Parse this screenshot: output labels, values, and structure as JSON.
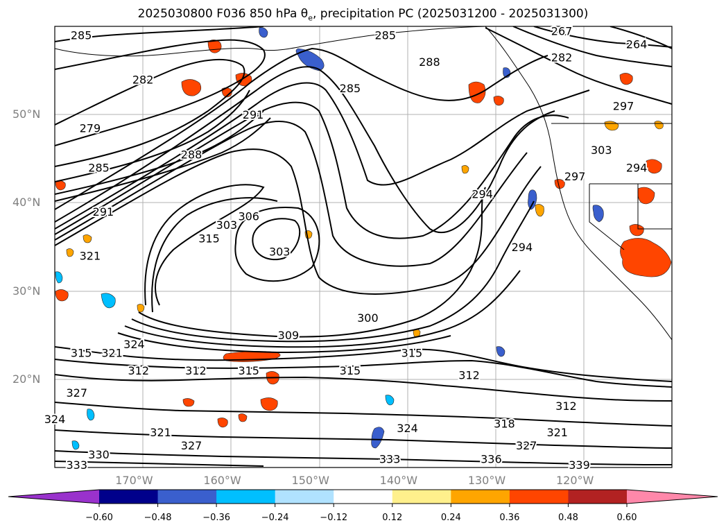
{
  "title": {
    "prefix": "2025030800 F036 850 hPa ",
    "theta": "θ",
    "theta_sub": "e",
    "suffix": ", precipitation PC (2025031200 - 2025031300)"
  },
  "map": {
    "lon_range": [
      -179,
      -109
    ],
    "lat_range": [
      10,
      60
    ],
    "gridline_color": "#b0b0b0",
    "lat_labels": [
      {
        "lat": 50,
        "text": "50°N"
      },
      {
        "lat": 40,
        "text": "40°N"
      },
      {
        "lat": 30,
        "text": "30°N"
      },
      {
        "lat": 20,
        "text": "20°N"
      }
    ],
    "lon_labels": [
      {
        "lon": -170,
        "text": "170°W"
      },
      {
        "lon": -160,
        "text": "160°W"
      },
      {
        "lon": -150,
        "text": "150°W"
      },
      {
        "lon": -140,
        "text": "140°W"
      },
      {
        "lon": -130,
        "text": "130°W"
      },
      {
        "lon": -120,
        "text": "120°W"
      }
    ],
    "contour_labels": [
      {
        "text": "285",
        "lon": -176,
        "lat": 59
      },
      {
        "text": "282",
        "lon": -169,
        "lat": 54
      },
      {
        "text": "279",
        "lon": -175,
        "lat": 48.5
      },
      {
        "text": "285",
        "lon": -174,
        "lat": 44
      },
      {
        "text": "288",
        "lon": -163.5,
        "lat": 45.5
      },
      {
        "text": "291",
        "lon": -173.5,
        "lat": 39
      },
      {
        "text": "321",
        "lon": -175,
        "lat": 34
      },
      {
        "text": "315",
        "lon": -161.5,
        "lat": 36
      },
      {
        "text": "303",
        "lon": -159.5,
        "lat": 37.5
      },
      {
        "text": "306",
        "lon": -157,
        "lat": 38.5
      },
      {
        "text": "291",
        "lon": -156.5,
        "lat": 50
      },
      {
        "text": "303",
        "lon": -153.5,
        "lat": 34.5
      },
      {
        "text": "285",
        "lon": -145.5,
        "lat": 53
      },
      {
        "text": "288",
        "lon": -136.5,
        "lat": 56
      },
      {
        "text": "285",
        "lon": -141.5,
        "lat": 59
      },
      {
        "text": "300",
        "lon": -143.5,
        "lat": 27
      },
      {
        "text": "309",
        "lon": -152.5,
        "lat": 25
      },
      {
        "text": "294",
        "lon": -130.5,
        "lat": 41
      },
      {
        "text": "294",
        "lon": -126,
        "lat": 35
      },
      {
        "text": "297",
        "lon": -120,
        "lat": 43
      },
      {
        "text": "303",
        "lon": -117,
        "lat": 46
      },
      {
        "text": "297",
        "lon": -114.5,
        "lat": 51
      },
      {
        "text": "294",
        "lon": -113,
        "lat": 44
      },
      {
        "text": "264",
        "lon": -113,
        "lat": 58
      },
      {
        "text": "267",
        "lon": -121.5,
        "lat": 59.5
      },
      {
        "text": "282",
        "lon": -121.5,
        "lat": 56.5
      },
      {
        "text": "315",
        "lon": -176,
        "lat": 23
      },
      {
        "text": "321",
        "lon": -172.5,
        "lat": 23
      },
      {
        "text": "324",
        "lon": -170,
        "lat": 24
      },
      {
        "text": "312",
        "lon": -169.5,
        "lat": 21
      },
      {
        "text": "312",
        "lon": -163,
        "lat": 21
      },
      {
        "text": "315",
        "lon": -157,
        "lat": 21
      },
      {
        "text": "327",
        "lon": -176.5,
        "lat": 18.5
      },
      {
        "text": "315",
        "lon": -145.5,
        "lat": 21
      },
      {
        "text": "315",
        "lon": -138.5,
        "lat": 23
      },
      {
        "text": "312",
        "lon": -132,
        "lat": 20.5
      },
      {
        "text": "312",
        "lon": -121,
        "lat": 17
      },
      {
        "text": "318",
        "lon": -128,
        "lat": 15
      },
      {
        "text": "321",
        "lon": -122,
        "lat": 14
      },
      {
        "text": "324",
        "lon": -139,
        "lat": 14.5
      },
      {
        "text": "327",
        "lon": -125.5,
        "lat": 12.5
      },
      {
        "text": "336",
        "lon": -129.5,
        "lat": 11
      },
      {
        "text": "333",
        "lon": -141,
        "lat": 11
      },
      {
        "text": "339",
        "lon": -119.5,
        "lat": 10.3
      },
      {
        "text": "330",
        "lon": -174,
        "lat": 11.5
      },
      {
        "text": "333",
        "lon": -176.5,
        "lat": 10.3
      },
      {
        "text": "327",
        "lon": -163.5,
        "lat": 12.5
      },
      {
        "text": "321",
        "lon": -167,
        "lat": 14
      },
      {
        "text": "324",
        "lon": -179,
        "lat": 15.5
      }
    ]
  },
  "colorbar": {
    "levels": [
      -0.6,
      -0.48,
      -0.36,
      -0.24,
      -0.12,
      0.12,
      0.24,
      0.36,
      0.48,
      0.6
    ],
    "level_labels": [
      "−0.60",
      "−0.48",
      "−0.36",
      "−0.24",
      "−0.12",
      "0.12",
      "0.24",
      "0.36",
      "0.48",
      "0.60"
    ],
    "colors": [
      "#9932cc",
      "#00008b",
      "#3a5fcd",
      "#00bfff",
      "#b0e2ff",
      "#ffffff",
      "#fff08c",
      "#ffa500",
      "#ff4500",
      "#b22222",
      "#ff88aa"
    ]
  }
}
